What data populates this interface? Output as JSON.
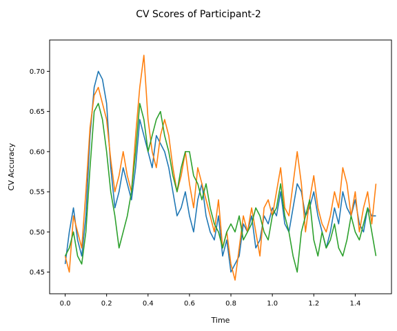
{
  "chart_data": {
    "type": "line",
    "title": "CV Scores of Participant-2",
    "xlabel": "Time",
    "ylabel": "CV Accuracy",
    "xlim": [
      -0.075,
      1.575
    ],
    "ylim": [
      0.423,
      0.739
    ],
    "xticks": [
      0.0,
      0.2,
      0.4,
      0.6,
      0.8,
      1.0,
      1.2,
      1.4
    ],
    "xtick_labels": [
      "0.0",
      "0.2",
      "0.4",
      "0.6",
      "0.8",
      "1.0",
      "1.2",
      "1.4"
    ],
    "yticks": [
      0.45,
      0.5,
      0.55,
      0.6,
      0.65,
      0.7
    ],
    "ytick_labels": [
      "0.45",
      "0.50",
      "0.55",
      "0.60",
      "0.65",
      "0.70"
    ],
    "grid": false,
    "legend": "none",
    "series": [
      {
        "color": "#1f77b4",
        "x": [
          0.0,
          0.02,
          0.04,
          0.06,
          0.08,
          0.1,
          0.12,
          0.14,
          0.16,
          0.18,
          0.2,
          0.22,
          0.24,
          0.26,
          0.28,
          0.3,
          0.32,
          0.34,
          0.36,
          0.38,
          0.4,
          0.42,
          0.44,
          0.46,
          0.48,
          0.5,
          0.52,
          0.54,
          0.56,
          0.58,
          0.6,
          0.62,
          0.64,
          0.66,
          0.68,
          0.7,
          0.72,
          0.74,
          0.76,
          0.78,
          0.8,
          0.82,
          0.84,
          0.86,
          0.88,
          0.9,
          0.92,
          0.94,
          0.96,
          0.98,
          1.0,
          1.02,
          1.04,
          1.06,
          1.08,
          1.1,
          1.12,
          1.14,
          1.16,
          1.18,
          1.2,
          1.22,
          1.24,
          1.26,
          1.28,
          1.3,
          1.32,
          1.34,
          1.36,
          1.38,
          1.4,
          1.42,
          1.44,
          1.46,
          1.48,
          1.5
        ],
        "y": [
          0.46,
          0.5,
          0.53,
          0.49,
          0.47,
          0.52,
          0.62,
          0.68,
          0.7,
          0.69,
          0.66,
          0.58,
          0.53,
          0.55,
          0.58,
          0.56,
          0.54,
          0.58,
          0.64,
          0.62,
          0.6,
          0.58,
          0.62,
          0.61,
          0.6,
          0.58,
          0.55,
          0.52,
          0.53,
          0.55,
          0.52,
          0.5,
          0.54,
          0.56,
          0.52,
          0.5,
          0.49,
          0.52,
          0.47,
          0.49,
          0.45,
          0.46,
          0.47,
          0.51,
          0.5,
          0.52,
          0.48,
          0.49,
          0.52,
          0.51,
          0.53,
          0.52,
          0.55,
          0.51,
          0.5,
          0.53,
          0.56,
          0.55,
          0.52,
          0.53,
          0.55,
          0.52,
          0.5,
          0.48,
          0.5,
          0.53,
          0.51,
          0.55,
          0.53,
          0.52,
          0.54,
          0.51,
          0.5,
          0.53,
          0.52,
          0.52
        ]
      },
      {
        "color": "#ff7f0e",
        "x": [
          0.0,
          0.02,
          0.04,
          0.06,
          0.08,
          0.1,
          0.12,
          0.14,
          0.16,
          0.18,
          0.2,
          0.22,
          0.24,
          0.26,
          0.28,
          0.3,
          0.32,
          0.34,
          0.36,
          0.38,
          0.4,
          0.42,
          0.44,
          0.46,
          0.48,
          0.5,
          0.52,
          0.54,
          0.56,
          0.58,
          0.6,
          0.62,
          0.64,
          0.66,
          0.68,
          0.7,
          0.72,
          0.74,
          0.76,
          0.78,
          0.8,
          0.82,
          0.84,
          0.86,
          0.88,
          0.9,
          0.92,
          0.94,
          0.96,
          0.98,
          1.0,
          1.02,
          1.04,
          1.06,
          1.08,
          1.1,
          1.12,
          1.14,
          1.16,
          1.18,
          1.2,
          1.22,
          1.24,
          1.26,
          1.28,
          1.3,
          1.32,
          1.34,
          1.36,
          1.38,
          1.4,
          1.42,
          1.44,
          1.46,
          1.48,
          1.5
        ],
        "y": [
          0.47,
          0.45,
          0.52,
          0.5,
          0.48,
          0.55,
          0.63,
          0.67,
          0.68,
          0.66,
          0.64,
          0.59,
          0.55,
          0.57,
          0.6,
          0.57,
          0.55,
          0.62,
          0.68,
          0.72,
          0.64,
          0.6,
          0.58,
          0.62,
          0.64,
          0.62,
          0.58,
          0.55,
          0.57,
          0.6,
          0.56,
          0.53,
          0.58,
          0.56,
          0.54,
          0.52,
          0.5,
          0.54,
          0.48,
          0.5,
          0.46,
          0.44,
          0.48,
          0.52,
          0.5,
          0.53,
          0.5,
          0.47,
          0.53,
          0.54,
          0.52,
          0.55,
          0.58,
          0.53,
          0.52,
          0.56,
          0.6,
          0.56,
          0.5,
          0.54,
          0.57,
          0.53,
          0.51,
          0.5,
          0.52,
          0.55,
          0.53,
          0.58,
          0.56,
          0.52,
          0.55,
          0.5,
          0.53,
          0.55,
          0.51,
          0.56
        ]
      },
      {
        "color": "#2ca02c",
        "x": [
          0.0,
          0.02,
          0.04,
          0.06,
          0.08,
          0.1,
          0.12,
          0.14,
          0.16,
          0.18,
          0.2,
          0.22,
          0.24,
          0.26,
          0.28,
          0.3,
          0.32,
          0.34,
          0.36,
          0.38,
          0.4,
          0.42,
          0.44,
          0.46,
          0.48,
          0.5,
          0.52,
          0.54,
          0.56,
          0.58,
          0.6,
          0.62,
          0.64,
          0.66,
          0.68,
          0.7,
          0.72,
          0.74,
          0.76,
          0.78,
          0.8,
          0.82,
          0.84,
          0.86,
          0.88,
          0.9,
          0.92,
          0.94,
          0.96,
          0.98,
          1.0,
          1.02,
          1.04,
          1.06,
          1.08,
          1.1,
          1.12,
          1.14,
          1.16,
          1.18,
          1.2,
          1.22,
          1.24,
          1.26,
          1.28,
          1.3,
          1.32,
          1.34,
          1.36,
          1.38,
          1.4,
          1.42,
          1.44,
          1.46,
          1.48,
          1.5
        ],
        "y": [
          0.47,
          0.48,
          0.5,
          0.47,
          0.46,
          0.5,
          0.58,
          0.65,
          0.66,
          0.64,
          0.6,
          0.55,
          0.52,
          0.48,
          0.5,
          0.52,
          0.55,
          0.6,
          0.66,
          0.64,
          0.6,
          0.62,
          0.64,
          0.65,
          0.62,
          0.6,
          0.57,
          0.55,
          0.58,
          0.6,
          0.6,
          0.57,
          0.56,
          0.54,
          0.56,
          0.53,
          0.51,
          0.5,
          0.48,
          0.5,
          0.51,
          0.5,
          0.52,
          0.49,
          0.5,
          0.51,
          0.53,
          0.52,
          0.5,
          0.49,
          0.52,
          0.53,
          0.56,
          0.52,
          0.5,
          0.47,
          0.45,
          0.5,
          0.52,
          0.54,
          0.49,
          0.47,
          0.5,
          0.48,
          0.49,
          0.51,
          0.48,
          0.47,
          0.49,
          0.52,
          0.5,
          0.49,
          0.51,
          0.53,
          0.5,
          0.47
        ]
      }
    ]
  }
}
